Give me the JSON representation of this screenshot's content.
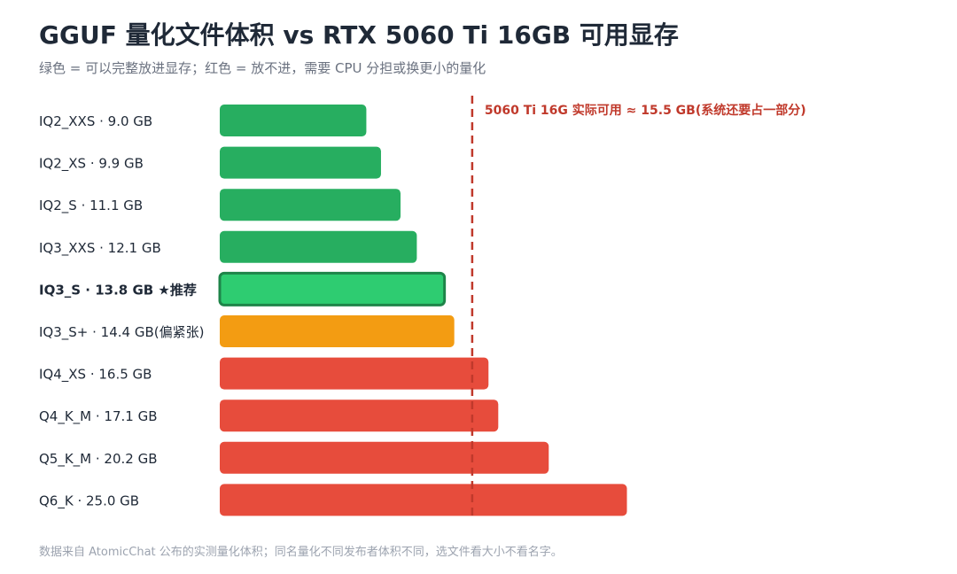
{
  "title": "GGUF 量化文件体积 vs RTX 5060 Ti 16GB 可用显存",
  "subtitle": "绿色 = 可以完整放进显存；红色 = 放不进，需要 CPU 分担或换更小的量化",
  "footnote": "数据来自 AtomicChat 公布的实测量化体积；同名量化不同发布者体积不同，选文件看大小不看名字。",
  "colors": {
    "fits": "#27ae60",
    "recommended": "#2ecc71",
    "recommended_border": "#1e8449",
    "tight": "#f39c12",
    "overflow": "#e74c3c",
    "threshold": "#c0392b"
  },
  "chart_data": {
    "type": "bar",
    "orientation": "horizontal",
    "unit": "GB",
    "categories": [
      "IQ2_XXS · 9.0 GB",
      "IQ2_XS · 9.9 GB",
      "IQ2_S · 11.1 GB",
      "IQ3_XXS · 12.1 GB",
      "IQ3_S · 13.8 GB ★推荐",
      "IQ3_S+ · 14.4 GB(偏紧张)",
      "IQ4_XS · 16.5 GB",
      "Q4_K_M · 17.1 GB",
      "Q5_K_M · 20.2 GB",
      "Q6_K · 25.0 GB"
    ],
    "values": [
      9.0,
      9.9,
      11.1,
      12.1,
      13.8,
      14.4,
      16.5,
      17.1,
      20.2,
      25.0
    ],
    "status": [
      "fits",
      "fits",
      "fits",
      "fits",
      "recommended",
      "tight",
      "overflow",
      "overflow",
      "overflow",
      "overflow"
    ],
    "threshold": {
      "value": 15.5,
      "label": "5060 Ti 16G 实际可用 ≈ 15.5 GB(系统还要占一部分)"
    },
    "xlim": [
      0,
      25.0
    ],
    "grid": false,
    "legend": "none"
  }
}
